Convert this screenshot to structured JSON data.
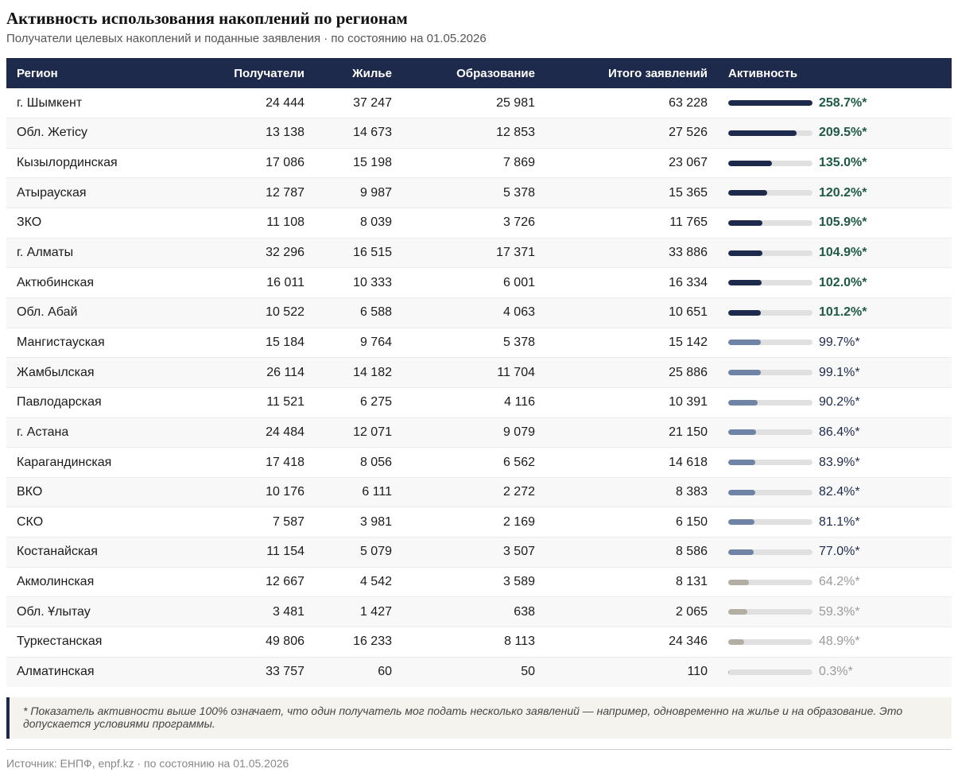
{
  "title": "Активность использования накоплений по регионам",
  "subtitle": "Получатели целевых накоплений и поданные заявления · по состоянию на 01.05.2026",
  "table": {
    "headers": {
      "region": "Регион",
      "recipients": "Получатели",
      "housing": "Жилье",
      "education": "Образование",
      "total": "Итого заявлений",
      "activity": "Активность"
    },
    "rows": [
      {
        "region": "г. Шымкент",
        "recipients": "24 444",
        "housing": "37 247",
        "education": "25 981",
        "total": "63 228",
        "activity": "258.7%*",
        "activity_value": 258.7
      },
      {
        "region": "Обл. Жетісу",
        "recipients": "13 138",
        "housing": "14 673",
        "education": "12 853",
        "total": "27 526",
        "activity": "209.5%*",
        "activity_value": 209.5
      },
      {
        "region": "Кызылординская",
        "recipients": "17 086",
        "housing": "15 198",
        "education": "7 869",
        "total": "23 067",
        "activity": "135.0%*",
        "activity_value": 135.0
      },
      {
        "region": "Атырауская",
        "recipients": "12 787",
        "housing": "9 987",
        "education": "5 378",
        "total": "15 365",
        "activity": "120.2%*",
        "activity_value": 120.2
      },
      {
        "region": "ЗКО",
        "recipients": "11 108",
        "housing": "8 039",
        "education": "3 726",
        "total": "11 765",
        "activity": "105.9%*",
        "activity_value": 105.9
      },
      {
        "region": "г. Алматы",
        "recipients": "32 296",
        "housing": "16 515",
        "education": "17 371",
        "total": "33 886",
        "activity": "104.9%*",
        "activity_value": 104.9
      },
      {
        "region": "Актюбинская",
        "recipients": "16 011",
        "housing": "10 333",
        "education": "6 001",
        "total": "16 334",
        "activity": "102.0%*",
        "activity_value": 102.0
      },
      {
        "region": "Обл. Абай",
        "recipients": "10 522",
        "housing": "6 588",
        "education": "4 063",
        "total": "10 651",
        "activity": "101.2%*",
        "activity_value": 101.2
      },
      {
        "region": "Мангистауская",
        "recipients": "15 184",
        "housing": "9 764",
        "education": "5 378",
        "total": "15 142",
        "activity": "99.7%*",
        "activity_value": 99.7
      },
      {
        "region": "Жамбылская",
        "recipients": "26 114",
        "housing": "14 182",
        "education": "11 704",
        "total": "25 886",
        "activity": "99.1%*",
        "activity_value": 99.1
      },
      {
        "region": "Павлодарская",
        "recipients": "11 521",
        "housing": "6 275",
        "education": "4 116",
        "total": "10 391",
        "activity": "90.2%*",
        "activity_value": 90.2
      },
      {
        "region": "г. Астана",
        "recipients": "24 484",
        "housing": "12 071",
        "education": "9 079",
        "total": "21 150",
        "activity": "86.4%*",
        "activity_value": 86.4
      },
      {
        "region": "Карагандинская",
        "recipients": "17 418",
        "housing": "8 056",
        "education": "6 562",
        "total": "14 618",
        "activity": "83.9%*",
        "activity_value": 83.9
      },
      {
        "region": "ВКО",
        "recipients": "10 176",
        "housing": "6 111",
        "education": "2 272",
        "total": "8 383",
        "activity": "82.4%*",
        "activity_value": 82.4
      },
      {
        "region": "СКО",
        "recipients": "7 587",
        "housing": "3 981",
        "education": "2 169",
        "total": "6 150",
        "activity": "81.1%*",
        "activity_value": 81.1
      },
      {
        "region": "Костанайская",
        "recipients": "11 154",
        "housing": "5 079",
        "education": "3 507",
        "total": "8 586",
        "activity": "77.0%*",
        "activity_value": 77.0
      },
      {
        "region": "Акмолинская",
        "recipients": "12 667",
        "housing": "4 542",
        "education": "3 589",
        "total": "8 131",
        "activity": "64.2%*",
        "activity_value": 64.2
      },
      {
        "region": "Обл. Ұлытау",
        "recipients": "3 481",
        "housing": "1 427",
        "education": "638",
        "total": "2 065",
        "activity": "59.3%*",
        "activity_value": 59.3
      },
      {
        "region": "Туркестанская",
        "recipients": "49 806",
        "housing": "16 233",
        "education": "8 113",
        "total": "24 346",
        "activity": "48.9%*",
        "activity_value": 48.9
      },
      {
        "region": "Алматинская",
        "recipients": "33 757",
        "housing": "60",
        "education": "50",
        "total": "110",
        "activity": "0.3%*",
        "activity_value": 0.3
      }
    ]
  },
  "colors": {
    "header_bg": "#1d2a4c",
    "bar_high": "#1d2a4c",
    "bar_mid": "#6e83a6",
    "bar_low": "#b3aea3",
    "text_high": "#1e5a45",
    "text_mid": "#1d2a4c",
    "text_low": "#9a9a9a"
  },
  "note": "* Показатель активности выше 100% означает, что один получатель мог подать несколько заявлений — например, одновременно на жилье и на образование. Это допускается условиями программы.",
  "source": "Источник: ЕНПФ, enpf.kz · по состоянию на 01.05.2026"
}
